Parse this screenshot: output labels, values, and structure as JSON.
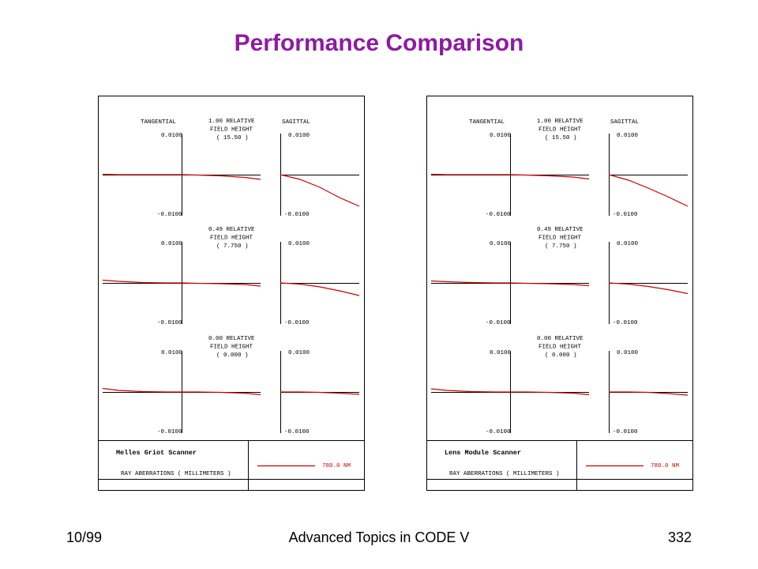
{
  "title": "Performance Comparison",
  "footer": {
    "left": "10/99",
    "center": "Advanced Topics in CODE V",
    "right": "332"
  },
  "colors": {
    "title": "#8e1aa3",
    "curve": "#cc0000",
    "axis": "#000000"
  },
  "chart_data": [
    {
      "type": "line",
      "design_name": "Melles Griot Scanner",
      "caption": "RAY ABERRATIONS ( MILLIMETERS )",
      "legend": {
        "label": "780.0 NM",
        "color": "#cc0000"
      },
      "column_titles": {
        "left": "TANGENTIAL",
        "right": "SAGITTAL"
      },
      "ylim": [
        -0.01,
        0.01
      ],
      "tick_top": "0.0100",
      "tick_bottom": "-0.0100",
      "xlim": [
        -1,
        1
      ],
      "fields": [
        {
          "label_lines": [
            "1.00 RELATIVE",
            "FIELD HEIGHT",
            "( 15.50 )"
          ],
          "tangential": {
            "x": [
              -1,
              -0.8,
              -0.5,
              -0.2,
              0,
              0.2,
              0.5,
              0.8,
              1
            ],
            "y": [
              0.0001,
              0.0,
              0.0,
              0.0,
              0.0,
              -0.0001,
              -0.0003,
              -0.0007,
              -0.0012
            ]
          },
          "sagittal": {
            "x": [
              0,
              0.25,
              0.5,
              0.75,
              1
            ],
            "y": [
              0.0,
              -0.0012,
              -0.0032,
              -0.0058,
              -0.008
            ]
          }
        },
        {
          "label_lines": [
            "0.49 RELATIVE",
            "FIELD HEIGHT",
            "( 7.750 )"
          ],
          "tangential": {
            "x": [
              -1,
              -0.8,
              -0.5,
              -0.2,
              0,
              0.2,
              0.5,
              0.8,
              1
            ],
            "y": [
              0.0007,
              0.0004,
              0.0001,
              0.0,
              0.0,
              -0.0001,
              -0.0002,
              -0.0004,
              -0.0008
            ]
          },
          "sagittal": {
            "x": [
              0,
              0.25,
              0.5,
              0.75,
              1
            ],
            "y": [
              0.0,
              -0.0003,
              -0.001,
              -0.002,
              -0.0032
            ]
          }
        },
        {
          "label_lines": [
            "0.00 RELATIVE",
            "FIELD HEIGHT",
            "( 0.000 )"
          ],
          "tangential": {
            "x": [
              -1,
              -0.8,
              -0.5,
              -0.2,
              0,
              0.2,
              0.5,
              0.8,
              1
            ],
            "y": [
              0.0009,
              0.0004,
              0.0001,
              0.0,
              0.0,
              0.0,
              -0.0001,
              -0.0003,
              -0.0007
            ]
          },
          "sagittal": {
            "x": [
              0,
              0.25,
              0.5,
              0.75,
              1
            ],
            "y": [
              0.0,
              0.0,
              -0.0001,
              -0.0003,
              -0.0006
            ]
          }
        }
      ]
    },
    {
      "type": "line",
      "design_name": "Lens Module Scanner",
      "caption": "RAY ABERRATIONS ( MILLIMETERS )",
      "legend": {
        "label": "780.0 NM",
        "color": "#cc0000"
      },
      "column_titles": {
        "left": "TANGENTIAL",
        "right": "SAGITTAL"
      },
      "ylim": [
        -0.01,
        0.01
      ],
      "tick_top": "0.0100",
      "tick_bottom": "-0.0100",
      "xlim": [
        -1,
        1
      ],
      "fields": [
        {
          "label_lines": [
            "1.00 RELATIVE",
            "FIELD HEIGHT",
            "( 15.50 )"
          ],
          "tangential": {
            "x": [
              -1,
              -0.8,
              -0.5,
              -0.2,
              0,
              0.2,
              0.5,
              0.8,
              1
            ],
            "y": [
              0.0001,
              0.0,
              0.0,
              0.0,
              0.0,
              -0.0001,
              -0.0003,
              -0.0006,
              -0.0011
            ]
          },
          "sagittal": {
            "x": [
              0,
              0.25,
              0.5,
              0.75,
              1
            ],
            "y": [
              0.0,
              -0.0014,
              -0.0034,
              -0.0056,
              -0.008
            ]
          }
        },
        {
          "label_lines": [
            "0.49 RELATIVE",
            "FIELD HEIGHT",
            "( 7.750 )"
          ],
          "tangential": {
            "x": [
              -1,
              -0.8,
              -0.5,
              -0.2,
              0,
              0.2,
              0.5,
              0.8,
              1
            ],
            "y": [
              0.0005,
              0.0003,
              0.0001,
              0.0,
              0.0,
              -0.0001,
              -0.0002,
              -0.0004,
              -0.0007
            ]
          },
          "sagittal": {
            "x": [
              0,
              0.25,
              0.5,
              0.75,
              1
            ],
            "y": [
              0.0,
              -0.0003,
              -0.0009,
              -0.0017,
              -0.0027
            ]
          }
        },
        {
          "label_lines": [
            "0.00 RELATIVE",
            "FIELD HEIGHT",
            "( 0.000 )"
          ],
          "tangential": {
            "x": [
              -1,
              -0.8,
              -0.5,
              -0.2,
              0,
              0.2,
              0.5,
              0.8,
              1
            ],
            "y": [
              0.0008,
              0.0004,
              0.0001,
              0.0,
              0.0,
              0.0,
              -0.0001,
              -0.0003,
              -0.0007
            ]
          },
          "sagittal": {
            "x": [
              0,
              0.25,
              0.5,
              0.75,
              1
            ],
            "y": [
              0.0,
              0.0,
              -0.0001,
              -0.0004,
              -0.0008
            ]
          }
        }
      ]
    }
  ]
}
